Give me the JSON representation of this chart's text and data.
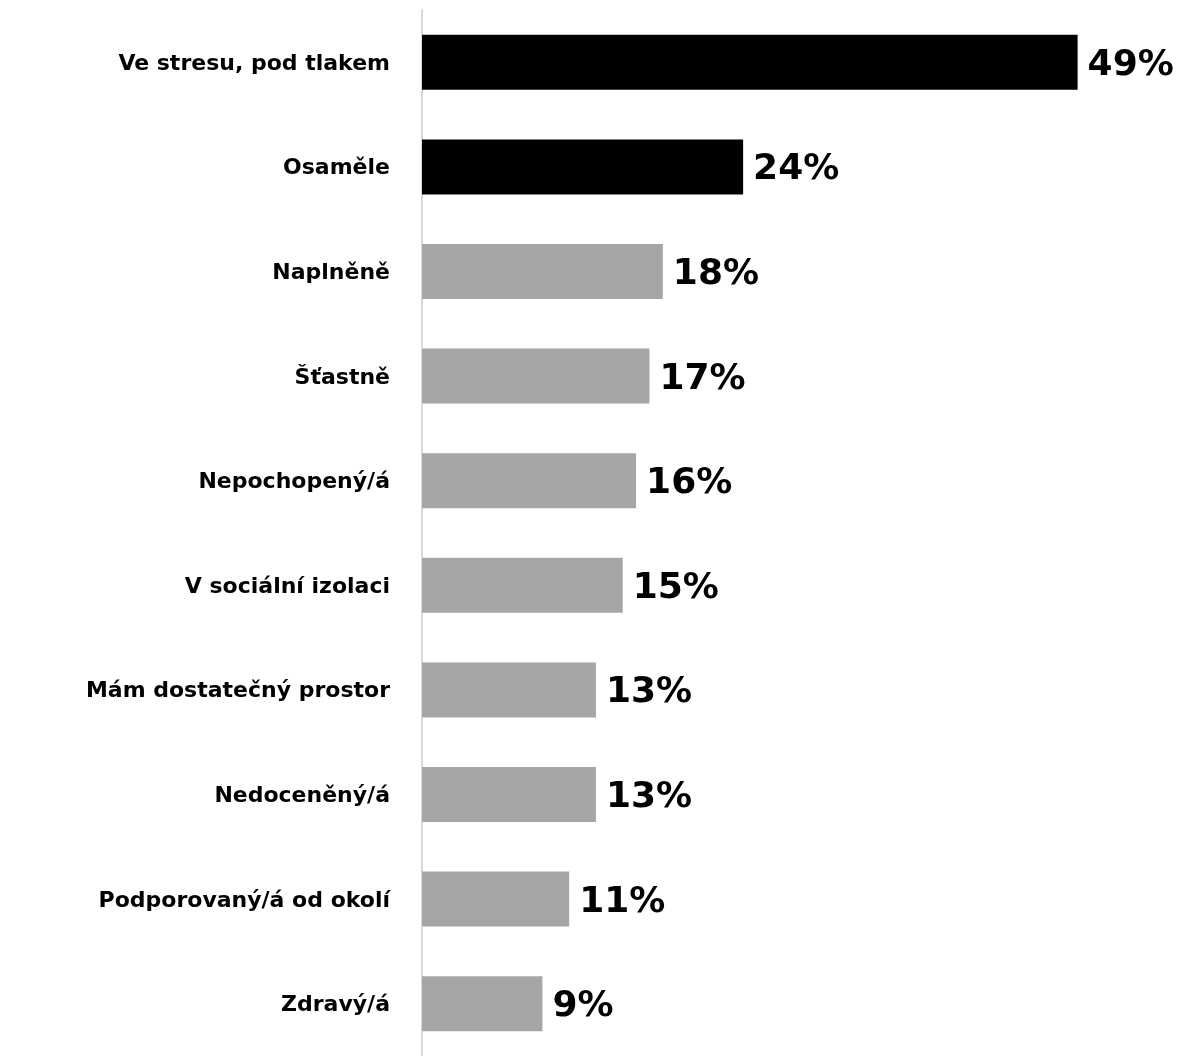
{
  "chart_data": {
    "type": "bar",
    "orientation": "horizontal",
    "categories": [
      "Ve stresu, pod tlakem",
      "Osaměle",
      "Naplněně",
      "Šťastně",
      "Nepochopený/á",
      "V sociální izolaci",
      "Mám dostatečný prostor",
      "Nedoceněný/á",
      "Podporovaný/á od okolí",
      "Zdravý/á"
    ],
    "values": [
      49,
      24,
      18,
      17,
      16,
      15,
      13,
      13,
      11,
      9
    ],
    "value_labels": [
      "49%",
      "24%",
      "18%",
      "17%",
      "16%",
      "15%",
      "13%",
      "13%",
      "11%",
      "9%"
    ],
    "colors": [
      "#000000",
      "#000000",
      "#a6a6a6",
      "#a6a6a6",
      "#a6a6a6",
      "#a6a6a6",
      "#a6a6a6",
      "#a6a6a6",
      "#a6a6a6",
      "#a6a6a6"
    ]
  }
}
